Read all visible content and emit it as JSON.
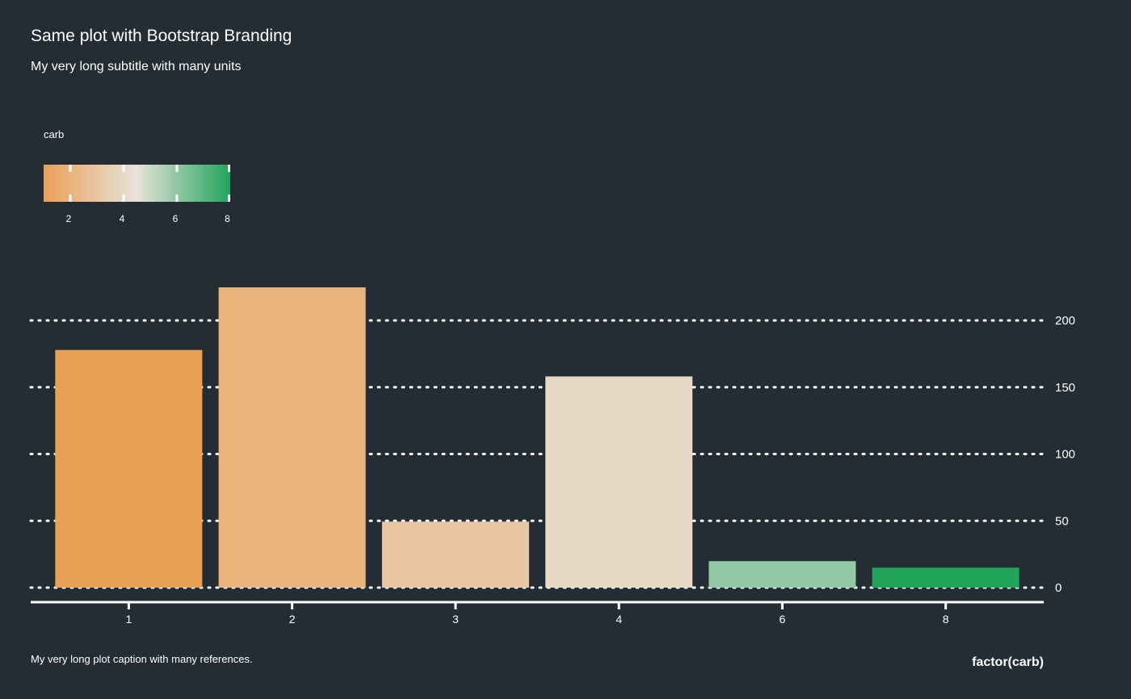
{
  "chart_data": {
    "type": "bar",
    "title": "Same plot with Bootstrap Branding",
    "subtitle": "My very long subtitle with many units",
    "caption": "My very long plot caption with many references.",
    "xlabel": "factor(carb)",
    "ylabel": "",
    "categories": [
      "1",
      "2",
      "3",
      "4",
      "6",
      "8"
    ],
    "values": [
      177.9,
      224.8,
      49.4,
      158.1,
      19.8,
      14.9
    ],
    "fill_values": [
      1,
      2,
      3,
      4,
      6,
      8
    ],
    "ylim": [
      0,
      224.8
    ],
    "yticks": [
      0,
      50,
      100,
      150,
      200
    ],
    "y_axis_position": "right",
    "grid": "horizontal dotted",
    "legend": {
      "title": "carb",
      "position": "top-left",
      "type": "colorbar",
      "range": [
        1,
        8
      ],
      "ticks": [
        2,
        4,
        6,
        8
      ],
      "colors": [
        "#e9a157",
        "#e8e2da",
        "#20a55a"
      ]
    },
    "colors": {
      "background": "#232d33",
      "text": "#ffffff",
      "low": "#e9a157",
      "mid": "#e8e2da",
      "high": "#20a55a"
    }
  }
}
